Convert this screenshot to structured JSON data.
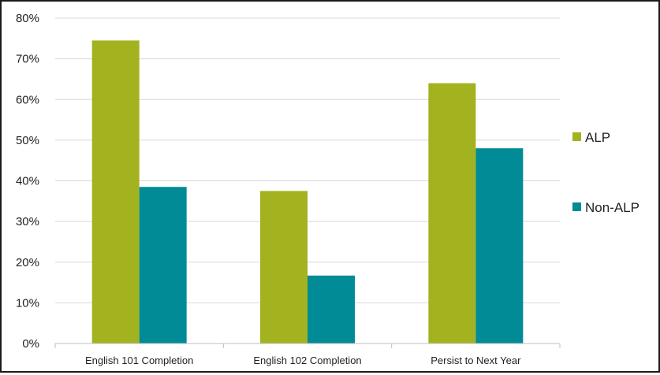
{
  "chart_data": {
    "type": "bar",
    "title": "",
    "xlabel": "",
    "ylabel": "",
    "categories": [
      "English 101 Completion",
      "English 102 Completion",
      "Persist to Next Year"
    ],
    "series": [
      {
        "name": "ALP",
        "color": "#a3b21f",
        "values": [
          74.5,
          37.5,
          64
        ]
      },
      {
        "name": "Non-ALP",
        "color": "#008b96",
        "values": [
          38.5,
          16.7,
          48
        ]
      }
    ],
    "ylim": [
      0,
      80
    ],
    "yticks": [
      "0%",
      "10%",
      "20%",
      "30%",
      "40%",
      "50%",
      "60%",
      "70%",
      "80%"
    ],
    "ytick_values": [
      0,
      10,
      20,
      30,
      40,
      50,
      60,
      70,
      80
    ],
    "grid": true,
    "legend_position": "right"
  }
}
